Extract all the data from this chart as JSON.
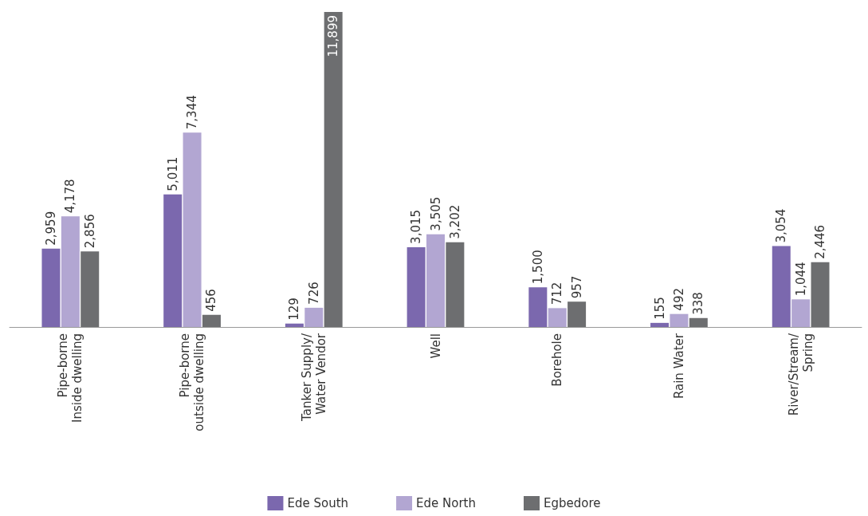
{
  "chart_data": {
    "type": "bar",
    "categories": [
      "Pipe-borne\nInside dwelling",
      "Pipe-borne\noutside dwelling",
      "Tanker Supply/\nWater Vendor",
      "Well",
      "Borehole",
      "Rain Water",
      "River/Stream/\nSpring"
    ],
    "series": [
      {
        "name": "Ede South",
        "color": "#7b68ae",
        "values": [
          2959,
          5011,
          129,
          3015,
          1500,
          155,
          3054
        ],
        "value_labels": [
          "2,959",
          "5,011",
          "129",
          "3,015",
          "1,500",
          "155",
          "3,054"
        ]
      },
      {
        "name": "Ede North",
        "color": "#b2a6d2",
        "values": [
          4178,
          7344,
          726,
          3505,
          712,
          492,
          1044
        ],
        "value_labels": [
          "4,178",
          "7,344",
          "726",
          "3,505",
          "712",
          "492",
          "1,044"
        ]
      },
      {
        "name": "Egbedore",
        "color": "#6d6e70",
        "values": [
          2856,
          456,
          11899,
          3202,
          957,
          338,
          2446
        ],
        "value_labels": [
          "2,856",
          "456",
          "11,899",
          "3,202",
          "957",
          "338",
          "2,446"
        ]
      }
    ],
    "legend": "bottom",
    "grid": false
  }
}
